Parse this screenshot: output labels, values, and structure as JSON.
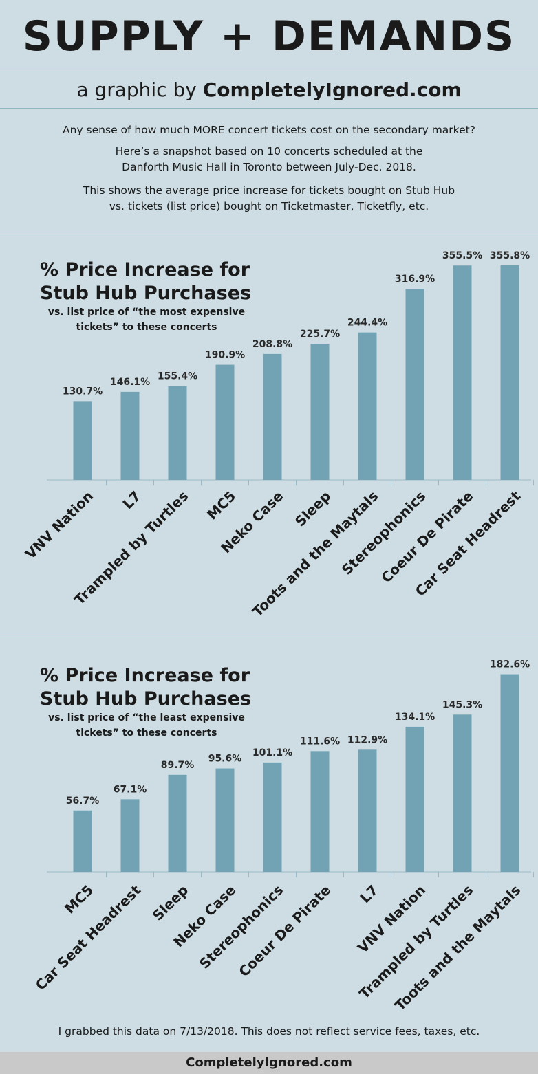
{
  "header": {
    "title": "SUPPLY + DEMANDS",
    "subtitle_prefix": "a graphic by ",
    "subtitle_brand": "CompletelyIgnored.com"
  },
  "intro": {
    "line1": "Any sense of how much MORE concert tickets cost on the secondary  market?",
    "line2": "Here’s a snapshot based on 10 concerts scheduled  at the",
    "line3": "Danforth Music Hall in Toronto between  July-Dec.  2018.",
    "line4": "This shows the average price increase for tickets bought on Stub Hub",
    "line5": "vs. tickets (list price) bought  on Ticketmaster, Ticketfly, etc."
  },
  "charts": [
    {
      "title_line1": "% Price Increase for",
      "title_line2": "Stub Hub Purchases",
      "subtitle_line1": "vs. list price of “the most expensive",
      "subtitle_line2": "tickets” to these concerts"
    },
    {
      "title_line1": "% Price Increase for",
      "title_line2": "Stub Hub Purchases",
      "subtitle_line1": "vs. list price of “the least expensive",
      "subtitle_line2": "tickets” to these concerts"
    }
  ],
  "chart_data": [
    {
      "type": "bar",
      "title": "% Price Increase for Stub Hub Purchases",
      "subtitle": "vs. list price of “the most expensive tickets” to these concerts",
      "categories": [
        "VNV Nation",
        "L7",
        "Trampled by Turtles",
        "MC5",
        "Neko Case",
        "Sleep",
        "Toots and the Maytals",
        "Stereophonics",
        "Coeur De Pirate",
        "Car Seat Headrest"
      ],
      "values": [
        130.7,
        146.1,
        155.4,
        190.9,
        208.8,
        225.7,
        244.4,
        316.9,
        355.5,
        355.8
      ],
      "labels": [
        "130.7%",
        "146.1%",
        "155.4%",
        "190.9%",
        "208.8%",
        "225.7%",
        "244.4%",
        "316.9%",
        "355.5%",
        "355.8%"
      ],
      "bar_color": "#72a3b5",
      "grid": false
    },
    {
      "type": "bar",
      "title": "% Price Increase for Stub Hub Purchases",
      "subtitle": "vs. list price of “the least expensive tickets” to these concerts",
      "categories": [
        "MC5",
        "Car Seat Headrest",
        "Sleep",
        "Neko Case",
        "Stereophonics",
        "Coeur De Pirate",
        "L7",
        "VNV Nation",
        "Trampled by Turtles",
        "Toots and the Maytals"
      ],
      "values": [
        56.7,
        67.1,
        89.7,
        95.6,
        101.1,
        111.6,
        112.9,
        134.1,
        145.3,
        182.6
      ],
      "labels": [
        "56.7%",
        "67.1%",
        "89.7%",
        "95.6%",
        "101.1%",
        "111.6%",
        "112.9%",
        "134.1%",
        "145.3%",
        "182.6%"
      ],
      "bar_color": "#72a3b5",
      "grid": false
    }
  ],
  "footer": {
    "note": "I grabbed this data on 7/13/2018.  This does not reflect service fees, taxes, etc.",
    "site": "CompletelyIgnored.com"
  }
}
